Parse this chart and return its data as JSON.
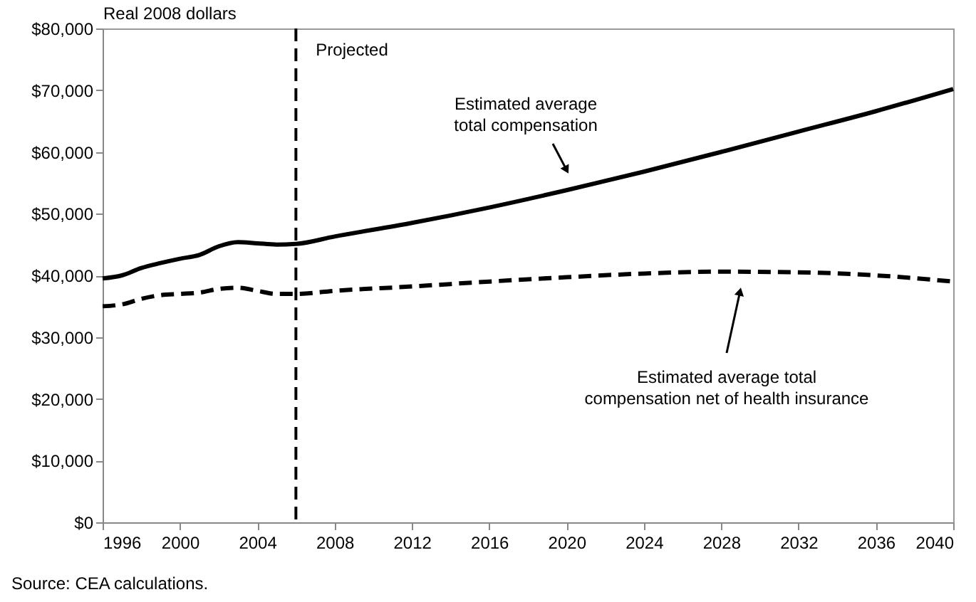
{
  "chart_data": {
    "type": "line",
    "ylabel": "Real 2008 dollars",
    "x": [
      1996,
      1997,
      1998,
      1999,
      2000,
      2001,
      2002,
      2003,
      2004,
      2005,
      2006,
      2008,
      2012,
      2016,
      2020,
      2024,
      2028,
      2032,
      2036,
      2040
    ],
    "series": [
      {
        "color": "#000000",
        "line_style": "solid",
        "values": [
          39500,
          40000,
          41200,
          42000,
          42700,
          43300,
          44700,
          45400,
          45200,
          45000,
          45100,
          46300,
          48500,
          51000,
          53800,
          56800,
          60000,
          63300,
          66600,
          70200
        ]
      },
      {
        "color": "#000000",
        "line_style": "dashed",
        "values": [
          35000,
          35300,
          36200,
          36800,
          37000,
          37200,
          37800,
          38000,
          37500,
          37000,
          37000,
          37500,
          38200,
          39000,
          39700,
          40300,
          40600,
          40500,
          40000,
          39000
        ]
      }
    ],
    "xlim": [
      1996,
      2040
    ],
    "xticks": [
      1996,
      2000,
      2004,
      2008,
      2012,
      2016,
      2020,
      2024,
      2028,
      2032,
      2036,
      2040
    ],
    "ylim": [
      0,
      80000
    ],
    "yticks": [
      {
        "value": 0,
        "label": "$0"
      },
      {
        "value": 10000,
        "label": "$10,000"
      },
      {
        "value": 20000,
        "label": "$20,000"
      },
      {
        "value": 30000,
        "label": "$30,000"
      },
      {
        "value": 40000,
        "label": "$40,000"
      },
      {
        "value": 50000,
        "label": "$50,000"
      },
      {
        "value": 60000,
        "label": "$60,000"
      },
      {
        "value": 70000,
        "label": "$70,000"
      },
      {
        "value": 80000,
        "label": "$80,000"
      }
    ],
    "ref_lines": [
      {
        "axis": "x",
        "value": 2006,
        "label": "Projected",
        "color": "#000000",
        "line_style": "dashed"
      }
    ],
    "annotations": [
      "Estimated average\ntotal compensation",
      "Estimated average total\ncompensation net of health insurance",
      "Source: CEA calculations."
    ]
  }
}
